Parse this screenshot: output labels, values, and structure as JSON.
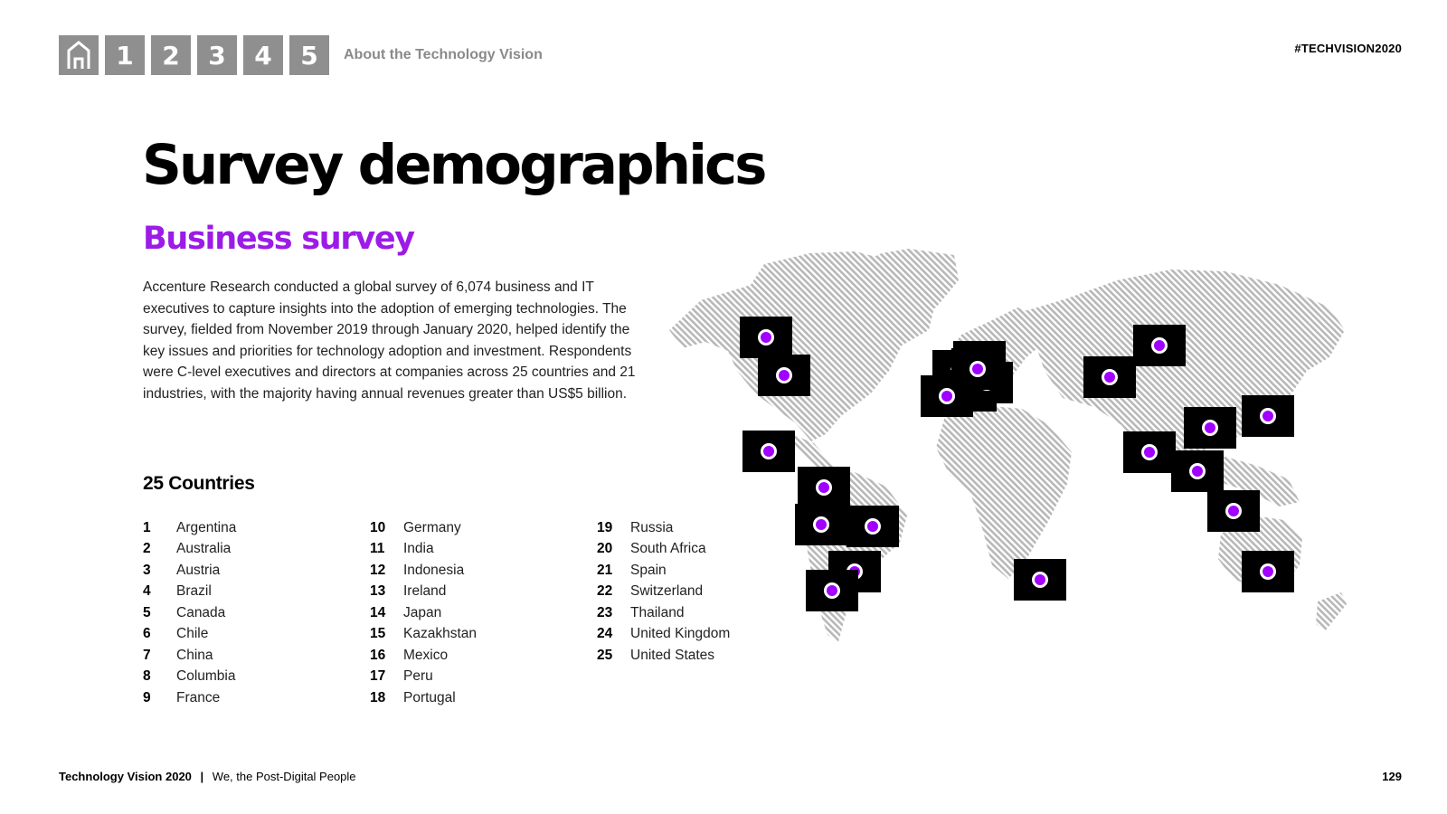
{
  "nav": {
    "home_icon": "home-icon",
    "items": [
      "1",
      "2",
      "3",
      "4",
      "5"
    ],
    "section_label": "About the Technology Vision"
  },
  "hashtag": "#TECHVISION2020",
  "page_title": "Survey demographics",
  "subtitle": "Business survey",
  "body_text": "Accenture Research conducted a global survey of 6,074 business and IT executives to capture insights into the adoption of emerging technologies. The survey, fielded from November 2019 through January 2020, helped identify the key issues and priorities for technology adoption and investment. Respondents were C-level executives and directors at companies across 25 countries and 21 industries, with the majority having annual revenues greater than US$5 billion.",
  "countries_title": "25 Countries",
  "countries": [
    {
      "num": "1",
      "name": "Argentina"
    },
    {
      "num": "2",
      "name": "Australia"
    },
    {
      "num": "3",
      "name": "Austria"
    },
    {
      "num": "4",
      "name": "Brazil"
    },
    {
      "num": "5",
      "name": "Canada"
    },
    {
      "num": "6",
      "name": "Chile"
    },
    {
      "num": "7",
      "name": "China"
    },
    {
      "num": "8",
      "name": "Columbia"
    },
    {
      "num": "9",
      "name": "France"
    },
    {
      "num": "10",
      "name": "Germany"
    },
    {
      "num": "11",
      "name": "India"
    },
    {
      "num": "12",
      "name": "Indonesia"
    },
    {
      "num": "13",
      "name": "Ireland"
    },
    {
      "num": "14",
      "name": "Japan"
    },
    {
      "num": "15",
      "name": "Kazakhstan"
    },
    {
      "num": "16",
      "name": "Mexico"
    },
    {
      "num": "17",
      "name": "Peru"
    },
    {
      "num": "18",
      "name": "Portugal"
    },
    {
      "num": "19",
      "name": "Russia"
    },
    {
      "num": "20",
      "name": "South Africa"
    },
    {
      "num": "21",
      "name": "Spain"
    },
    {
      "num": "22",
      "name": "Switzerland"
    },
    {
      "num": "23",
      "name": "Thailand"
    },
    {
      "num": "24",
      "name": "United Kingdom"
    },
    {
      "num": "25",
      "name": "United States"
    }
  ],
  "map": {
    "land_color": "#b8b8b8",
    "marker_color": "#a100ff",
    "marker_box_color": "#000000"
  },
  "footer": {
    "brand": "Technology Vision 2020",
    "separator": "|",
    "tagline": "We, the Post-Digital People",
    "page_number": "129"
  }
}
